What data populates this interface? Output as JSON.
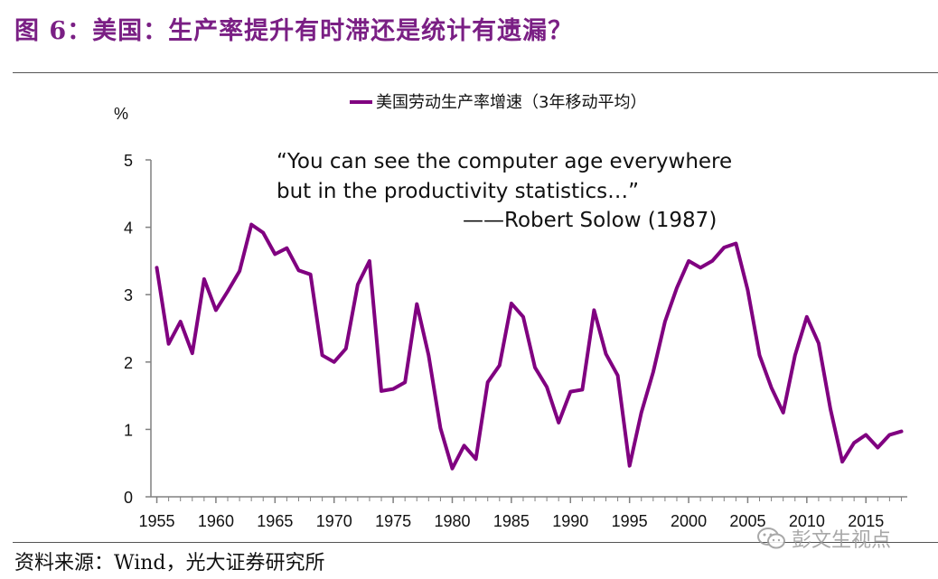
{
  "figure": {
    "title": "图 6：美国：生产率提升有时滞还是统计有遗漏？",
    "source": "资料来源：Wind，光大证券研究所",
    "watermark": "彭文生视点",
    "watermark_icon": "wechat-icon"
  },
  "chart_data": {
    "type": "line",
    "title": "",
    "ylabel": "%",
    "xlabel": "",
    "ylim": [
      0,
      5
    ],
    "yticks": [
      0,
      1,
      2,
      3,
      4,
      5
    ],
    "xticks": [
      1955,
      1960,
      1965,
      1970,
      1975,
      1980,
      1985,
      1990,
      1995,
      2000,
      2005,
      2010,
      2015
    ],
    "grid": false,
    "legend_position": "top-center",
    "annotation": {
      "line1": "“You can see the computer age everywhere",
      "line2": "but in the productivity statistics…”",
      "line3": "——Robert Solow (1987)"
    },
    "series": [
      {
        "name": "美国劳动生产率增速（3年移动平均）",
        "color": "#800080",
        "x": [
          1955,
          1956,
          1957,
          1958,
          1959,
          1960,
          1961,
          1962,
          1963,
          1964,
          1965,
          1966,
          1967,
          1968,
          1969,
          1970,
          1971,
          1972,
          1973,
          1974,
          1975,
          1976,
          1977,
          1978,
          1979,
          1980,
          1981,
          1982,
          1983,
          1984,
          1985,
          1986,
          1987,
          1988,
          1989,
          1990,
          1991,
          1992,
          1993,
          1994,
          1995,
          1996,
          1997,
          1998,
          1999,
          2000,
          2001,
          2002,
          2003,
          2004,
          2005,
          2006,
          2007,
          2008,
          2009,
          2010,
          2011,
          2012,
          2013,
          2014,
          2015,
          2016,
          2017,
          2018
        ],
        "values": [
          3.4,
          2.27,
          2.6,
          2.13,
          3.23,
          2.77,
          3.05,
          3.35,
          4.04,
          3.92,
          3.6,
          3.69,
          3.36,
          3.3,
          2.1,
          2.0,
          2.2,
          3.15,
          3.5,
          1.57,
          1.6,
          1.7,
          2.86,
          2.1,
          1.02,
          0.42,
          0.76,
          0.56,
          1.7,
          1.95,
          2.87,
          2.67,
          1.92,
          1.63,
          1.1,
          1.56,
          1.59,
          2.77,
          2.12,
          1.8,
          0.46,
          1.25,
          1.85,
          2.6,
          3.1,
          3.5,
          3.4,
          3.5,
          3.7,
          3.76,
          3.07,
          2.1,
          1.62,
          1.25,
          2.1,
          2.67,
          2.28,
          1.3,
          0.52,
          0.8,
          0.92,
          0.73,
          0.92,
          0.97
        ]
      }
    ]
  }
}
